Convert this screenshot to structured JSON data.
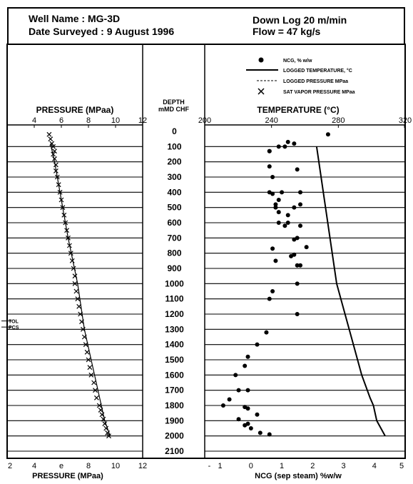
{
  "header": {
    "well_name": "Well Name : MG-3D",
    "date_surveyed": "Date Surveyed : 9 August 1996",
    "down_log": "Down Log 20 m/min",
    "flow": "Flow = 47 kg/s"
  },
  "legend": [
    {
      "symbol": "dot",
      "label": "NCG, % w/w"
    },
    {
      "symbol": "solid-line",
      "label": "LOGGED TEMPERATURE, °C"
    },
    {
      "symbol": "dashed-line",
      "label": "LOGGED PRESSURE MPaa"
    },
    {
      "symbol": "x",
      "label": "SAT VAPOR PRESSURE MPaa"
    }
  ],
  "markers": [
    {
      "label": "TOL",
      "depth": 1245
    },
    {
      "label": "PCS",
      "depth": 1285
    }
  ],
  "chart_data": [
    {
      "type": "line",
      "panel": "pressure",
      "title": "PRESSURE (MPaa)",
      "xlabel": "PRESSURE (MPaa)",
      "ylabel": "DEPTH mMD CHF",
      "xlim": [
        2,
        12
      ],
      "ylim": [
        0,
        2100
      ],
      "y_inverted": true,
      "xticks_top": [
        "4",
        "6",
        "8",
        "10",
        "12"
      ],
      "xticks_bottom": [
        "2",
        "4",
        "e",
        "8",
        "10",
        "12"
      ],
      "grid": true,
      "series": [
        {
          "name": "LOGGED PRESSURE MPaa",
          "style": "line",
          "x": [
            5.2,
            5.5,
            5.9,
            6.5,
            7.2,
            7.7,
            8.2,
            8.7,
            9.2,
            9.6
          ],
          "y": [
            80,
            200,
            400,
            700,
            1000,
            1300,
            1500,
            1700,
            1900,
            2000
          ]
        },
        {
          "name": "SAT VAPOR PRESSURE MPaa",
          "style": "x",
          "x": [
            5.1,
            5.2,
            5.3,
            5.4,
            5.5,
            5.4,
            5.5,
            5.6,
            5.6,
            5.7,
            5.8,
            5.9,
            6.0,
            6.1,
            6.2,
            6.3,
            6.4,
            6.5,
            6.6,
            6.7,
            6.8,
            6.9,
            7.0,
            7.0,
            7.1,
            7.2,
            7.3,
            7.4,
            7.5,
            7.6,
            7.7,
            7.8,
            7.9,
            8.0,
            8.1,
            8.2,
            8.4,
            8.5,
            8.6,
            8.8,
            8.9,
            9.0,
            9.1,
            9.2,
            9.3,
            9.4,
            9.5
          ],
          "y": [
            20,
            50,
            80,
            100,
            130,
            150,
            180,
            220,
            260,
            300,
            350,
            400,
            450,
            500,
            550,
            600,
            650,
            700,
            750,
            800,
            850,
            900,
            950,
            1000,
            1050,
            1100,
            1150,
            1200,
            1250,
            1300,
            1350,
            1400,
            1450,
            1500,
            1550,
            1600,
            1650,
            1700,
            1750,
            1800,
            1830,
            1860,
            1890,
            1920,
            1950,
            1980,
            2000
          ]
        }
      ]
    },
    {
      "type": "scatter",
      "panel": "temperature-ncg",
      "title": "TEMPERATURE (°C)",
      "xlabel": "NCG (sep steam) %w/w",
      "ylabel": "DEPTH mMD CHF",
      "xlim_top": [
        200,
        320
      ],
      "xticks_top": [
        "200",
        "240",
        "280",
        "320"
      ],
      "xlim_bottom": [
        -1.5,
        5
      ],
      "xticks_bottom": [
        "-",
        "1",
        "0",
        "1",
        "2",
        "3",
        "4",
        "5"
      ],
      "ylim": [
        0,
        2100
      ],
      "y_inverted": true,
      "yticks": [
        "0",
        "100",
        "200",
        "300",
        "400",
        "500",
        "600",
        "700",
        "800",
        "900",
        "1000",
        "1100",
        "1200",
        "1300",
        "1400",
        "1500",
        "1600",
        "1700",
        "1800",
        "1900",
        "2000",
        "2100"
      ],
      "grid": true,
      "series": [
        {
          "name": "LOGGED TEMPERATURE, °C",
          "style": "line",
          "axis": "top",
          "x": [
            267,
            271,
            275,
            279,
            284,
            289,
            294,
            299,
            301,
            303,
            308
          ],
          "y": [
            100,
            400,
            700,
            1000,
            1200,
            1400,
            1600,
            1750,
            1800,
            1900,
            2000
          ]
        },
        {
          "name": "NCG, % w/w",
          "style": "dot",
          "axis": "bottom",
          "x": [
            2.5,
            1.2,
            1.4,
            1.1,
            0.9,
            0.6,
            0.6,
            0.6,
            1.5,
            0.7,
            0.6,
            1.6,
            1.0,
            0.7,
            0.9,
            0.8,
            1.6,
            0.8,
            1.4,
            0.9,
            1.2,
            1.2,
            0.9,
            1.1,
            1.6,
            1.5,
            1.4,
            1.8,
            0.7,
            1.4,
            1.3,
            0.8,
            1.6,
            1.5,
            1.5,
            0.7,
            0.6,
            1.5,
            0.5,
            0.2,
            -0.1,
            -0.2,
            -0.5,
            -0.4,
            -0.1,
            -0.7,
            -0.9,
            -0.2,
            -0.1,
            0.2,
            -0.4,
            -0.1,
            -0.2,
            0.0,
            0.3,
            0.6
          ],
          "y": [
            20,
            70,
            80,
            100,
            100,
            130,
            130,
            230,
            250,
            300,
            400,
            400,
            400,
            410,
            450,
            480,
            480,
            500,
            500,
            530,
            550,
            600,
            600,
            620,
            620,
            700,
            710,
            760,
            770,
            810,
            820,
            850,
            880,
            880,
            1000,
            1050,
            1100,
            1200,
            1320,
            1400,
            1480,
            1540,
            1600,
            1700,
            1700,
            1760,
            1800,
            1810,
            1820,
            1860,
            1890,
            1920,
            1930,
            1950,
            1980,
            1990
          ]
        }
      ]
    }
  ]
}
